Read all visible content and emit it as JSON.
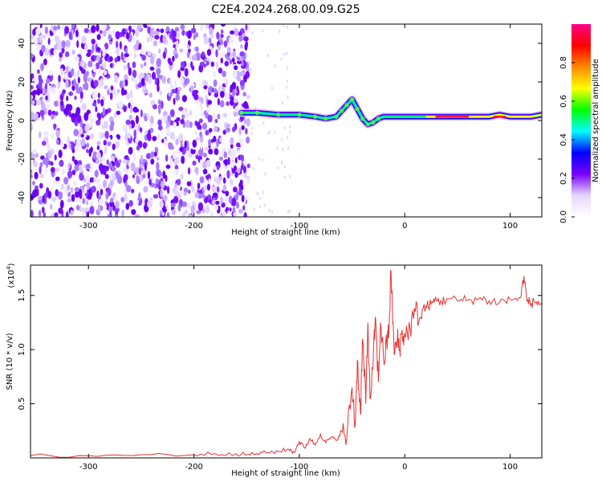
{
  "figure": {
    "title": "C2E4.2024.268.00.09.G25"
  },
  "chart_data": [
    {
      "type": "heatmap",
      "xlabel": "Height of straight line (km)",
      "ylabel": "Frequency (Hz)",
      "xlim": [
        -355,
        130
      ],
      "ylim": [
        -50,
        50
      ],
      "xticks": [
        -300,
        -200,
        -100,
        0,
        100
      ],
      "yticks": [
        -40,
        -20,
        0,
        20,
        40
      ],
      "noise_region": {
        "x_range": [
          -355,
          -148
        ],
        "y_range": [
          -50,
          50
        ]
      },
      "signal_trace": {
        "x": [
          -155,
          -140,
          -120,
          -100,
          -85,
          -75,
          -65,
          -60,
          -55,
          -50,
          -45,
          -40,
          -35,
          -30,
          -25,
          -20,
          -10,
          0,
          20,
          40,
          60,
          80,
          90,
          100,
          110,
          120,
          130
        ],
        "y": [
          4,
          4,
          3,
          3,
          2,
          1,
          2,
          5,
          8,
          11,
          6,
          1,
          -2,
          -1,
          1,
          2,
          2,
          2,
          2,
          2,
          2,
          2,
          3,
          2,
          2,
          2,
          3
        ]
      },
      "colorbar": {
        "label": "Normalized spectral amplitude",
        "range": [
          0,
          1
        ],
        "ticks": [
          "0.0",
          "0.2",
          "0.4",
          "0.6",
          "0.8"
        ],
        "colors": [
          "#ffffff",
          "#e6d6ff",
          "#7a00ff",
          "#0000ff",
          "#00ffff",
          "#00ff00",
          "#ffff00",
          "#ff8800",
          "#ff0000",
          "#ff0088"
        ]
      }
    },
    {
      "type": "line",
      "xlabel": "Height of straight line (km)",
      "ylabel": "SNR (10 * v/v)",
      "y_multiplier": "(x10",
      "y_multiplier_exp": "4",
      "y_multiplier_close": ")",
      "xlim": [
        -355,
        130
      ],
      "ylim": [
        0,
        1.78
      ],
      "xticks": [
        -300,
        -200,
        -100,
        0,
        100
      ],
      "yticks": [
        "0.5",
        "1.0",
        "1.5"
      ],
      "series": [
        {
          "color": "#e83030",
          "x": [
            -355,
            -300,
            -250,
            -200,
            -180,
            -160,
            -150,
            -140,
            -130,
            -120,
            -110,
            -105,
            -100,
            -95,
            -90,
            -85,
            -80,
            -75,
            -70,
            -65,
            -60,
            -55,
            -50,
            -47,
            -45,
            -42,
            -40,
            -37,
            -35,
            -33,
            -30,
            -28,
            -25,
            -23,
            -20,
            -17,
            -15,
            -13,
            -10,
            -7,
            -5,
            -3,
            0,
            5,
            10,
            15,
            20,
            25,
            30,
            35,
            40,
            50,
            60,
            70,
            80,
            90,
            100,
            110,
            113,
            116,
            120,
            125,
            130
          ],
          "y": [
            0.02,
            0.02,
            0.03,
            0.03,
            0.04,
            0.04,
            0.03,
            0.04,
            0.05,
            0.06,
            0.08,
            0.05,
            0.15,
            0.09,
            0.18,
            0.12,
            0.22,
            0.14,
            0.19,
            0.16,
            0.25,
            0.18,
            0.65,
            0.3,
            0.9,
            0.4,
            1.1,
            0.5,
            1.25,
            0.55,
            0.85,
            1.3,
            0.7,
            1.25,
            0.9,
            1.05,
            1.2,
            1.72,
            0.95,
            1.1,
            1.0,
            1.15,
            1.12,
            1.2,
            1.35,
            1.3,
            1.4,
            1.42,
            1.46,
            1.44,
            1.47,
            1.45,
            1.46,
            1.47,
            1.45,
            1.44,
            1.46,
            1.48,
            1.68,
            1.45,
            1.43,
            1.44,
            1.42
          ]
        }
      ]
    }
  ]
}
